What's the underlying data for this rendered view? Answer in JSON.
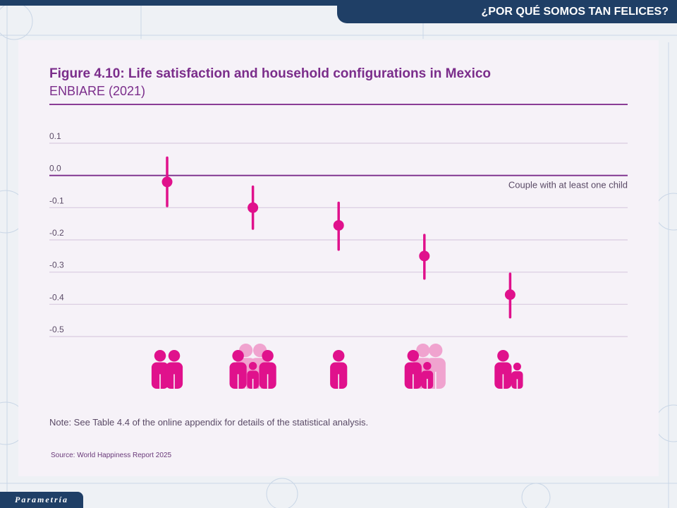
{
  "header": {
    "title": "¿POR QUÉ SOMOS TAN FELICES?"
  },
  "brand": {
    "logo_text": "Parametría",
    "watermark_text": "Parametria"
  },
  "figure": {
    "title": "Figure 4.10: Life satisfaction and household configurations in Mexico",
    "subtitle": "ENBIARE (2021)",
    "note": "Note: See Table 4.4 of the online appendix for details of the statistical analysis.",
    "source": "Source: World Happiness Report 2025"
  },
  "colors": {
    "accent": "#e0118c",
    "accent_light": "#f0a3cf",
    "purple": "#7b2d8b",
    "navy": "#1f3f66"
  },
  "chart_data": {
    "type": "scatter",
    "title": "Figure 4.10: Life satisfaction and household configurations in Mexico",
    "subtitle": "ENBIARE (2021)",
    "xlabel": "",
    "ylabel": "",
    "ylim": [
      -0.5,
      0.1
    ],
    "yticks": [
      0.1,
      0.0,
      -0.1,
      -0.2,
      -0.3,
      -0.4,
      -0.5
    ],
    "ytick_labels": [
      "0.1",
      "0.0",
      "-0.1",
      "-0.2",
      "-0.3",
      "-0.4",
      "-0.5"
    ],
    "reference_line": {
      "y": 0.0,
      "label": "Couple with at least one child"
    },
    "grid": true,
    "categories": [
      "Couple (two adults)",
      "Couple with child and parents",
      "Single person",
      "Single parent with child and parents",
      "Single parent with child"
    ],
    "category_icons": [
      "couple-icon",
      "couple-child-grandparents-icon",
      "single-person-icon",
      "single-parent-child-grandparents-icon",
      "single-parent-child-icon"
    ],
    "values": [
      -0.02,
      -0.1,
      -0.155,
      -0.25,
      -0.37
    ],
    "ci_low": [
      -0.095,
      -0.165,
      -0.23,
      -0.32,
      -0.44
    ],
    "ci_high": [
      0.055,
      -0.035,
      -0.085,
      -0.185,
      -0.305
    ]
  }
}
